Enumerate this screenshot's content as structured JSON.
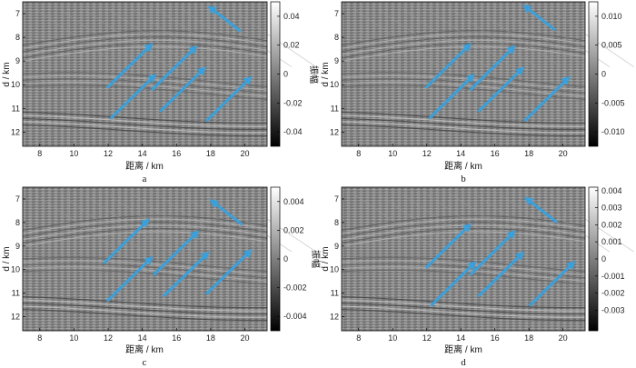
{
  "figure": {
    "panels": [
      {
        "letter": "a",
        "x_ticks": [
          8,
          10,
          12,
          14,
          16,
          18,
          20
        ],
        "y_ticks": [
          7,
          8,
          9,
          10,
          11,
          12
        ],
        "colorbar_ticks": [
          "0.04",
          "0.02",
          "0",
          "-0.02",
          "-0.04"
        ],
        "colorbar_range": [
          -0.05,
          0.05
        ],
        "arrows": [
          {
            "x": 18.7,
            "y": 7.25,
            "dir": "up-left"
          },
          {
            "x": 13.3,
            "y": 9.1,
            "dir": "up-right"
          },
          {
            "x": 15.9,
            "y": 9.2,
            "dir": "up-right"
          },
          {
            "x": 13.5,
            "y": 10.4,
            "dir": "up-right"
          },
          {
            "x": 16.4,
            "y": 10.1,
            "dir": "up-right"
          },
          {
            "x": 19.1,
            "y": 10.5,
            "dir": "up-right"
          }
        ]
      },
      {
        "letter": "b",
        "x_ticks": [
          8,
          10,
          12,
          14,
          16,
          18,
          20
        ],
        "y_ticks": [
          7,
          8,
          9,
          10,
          11,
          12
        ],
        "colorbar_ticks": [
          "0.010",
          "0.005",
          "0",
          "-0.005",
          "-0.010"
        ],
        "colorbar_range": [
          -0.0125,
          0.0125
        ],
        "arrows": [
          {
            "x": 18.5,
            "y": 7.2,
            "dir": "up-left"
          },
          {
            "x": 13.3,
            "y": 9.1,
            "dir": "up-right"
          },
          {
            "x": 15.9,
            "y": 9.2,
            "dir": "up-right"
          },
          {
            "x": 13.5,
            "y": 10.4,
            "dir": "up-right"
          },
          {
            "x": 16.4,
            "y": 10.1,
            "dir": "up-right"
          },
          {
            "x": 19.1,
            "y": 10.5,
            "dir": "up-right"
          }
        ]
      },
      {
        "letter": "c",
        "x_ticks": [
          8,
          10,
          12,
          14,
          16,
          18,
          20
        ],
        "y_ticks": [
          7,
          8,
          9,
          10,
          11,
          12
        ],
        "colorbar_ticks": [
          "0.004",
          "0.002",
          "0",
          "-0.002",
          "-0.004"
        ],
        "colorbar_range": [
          -0.005,
          0.005
        ],
        "arrows": [
          {
            "x": 18.8,
            "y": 7.6,
            "dir": "up-left"
          },
          {
            "x": 13.1,
            "y": 8.7,
            "dir": "up-right"
          },
          {
            "x": 16.0,
            "y": 9.2,
            "dir": "up-right"
          },
          {
            "x": 13.3,
            "y": 10.3,
            "dir": "up-right"
          },
          {
            "x": 16.6,
            "y": 10.1,
            "dir": "up-right"
          },
          {
            "x": 19.1,
            "y": 10.0,
            "dir": "up-right"
          }
        ]
      },
      {
        "letter": "d",
        "x_ticks": [
          8,
          10,
          12,
          14,
          16,
          18,
          20
        ],
        "y_ticks": [
          7,
          8,
          9,
          10,
          11,
          12
        ],
        "colorbar_ticks": [
          "0.004",
          "0.003",
          "0.002",
          "0.001",
          "0",
          "-0.001",
          "-0.002",
          "-0.003"
        ],
        "colorbar_range": [
          -0.0042,
          0.0042
        ],
        "arrows": [
          {
            "x": 18.6,
            "y": 7.5,
            "dir": "up-left"
          },
          {
            "x": 13.3,
            "y": 8.9,
            "dir": "up-right"
          },
          {
            "x": 15.9,
            "y": 9.2,
            "dir": "up-right"
          },
          {
            "x": 13.6,
            "y": 10.5,
            "dir": "up-right"
          },
          {
            "x": 16.4,
            "y": 10.1,
            "dir": "up-right"
          },
          {
            "x": 19.4,
            "y": 10.5,
            "dir": "up-right"
          }
        ]
      }
    ],
    "x_range": [
      7,
      21.3
    ],
    "y_range": [
      12.6,
      6.5
    ],
    "x_label": "距离 / km",
    "y_label": "d / km",
    "colorbar_label": "振幅",
    "arrow_color": "#3aa0dc"
  }
}
